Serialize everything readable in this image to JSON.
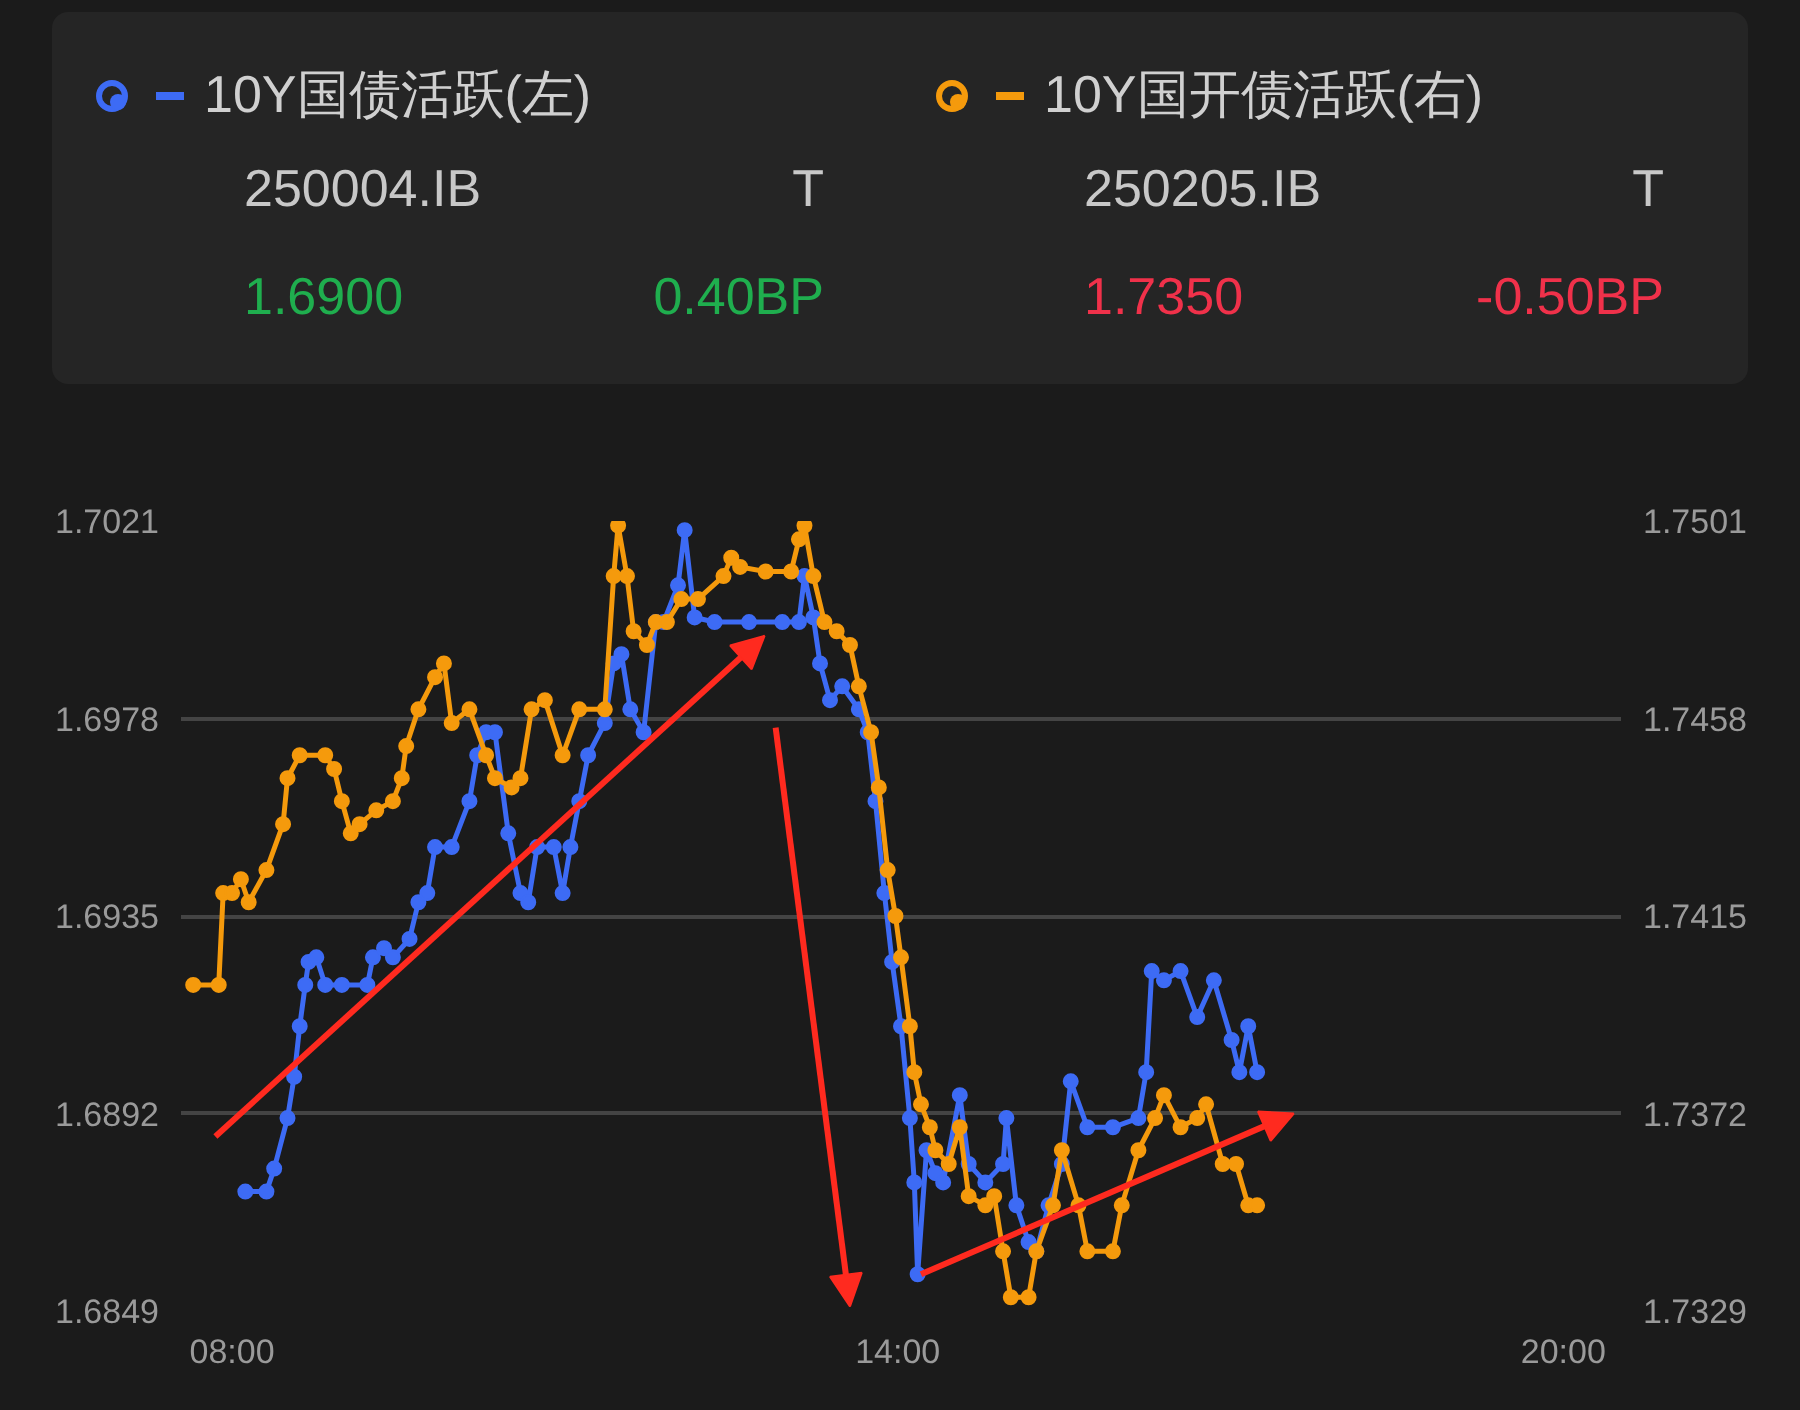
{
  "chart_data": {
    "type": "line",
    "marker": "circle",
    "line_style": "solid",
    "grid": "y",
    "legend": "top",
    "xlim": [
      7.54,
      20.52
    ],
    "xticks": [
      {
        "value": 8,
        "label": "08:00"
      },
      {
        "value": 14,
        "label": "14:00"
      },
      {
        "value": 20,
        "label": "20:00"
      }
    ],
    "ylim": [
      1.6849,
      1.7021
    ],
    "yticks": [
      1.6849,
      1.6892,
      1.6935,
      1.6978,
      1.7021
    ],
    "y2lim": [
      1.7329,
      1.7501
    ],
    "y2ticks": [
      1.7329,
      1.7372,
      1.7415,
      1.7458,
      1.7501
    ],
    "annotations": [
      "250004.IB",
      "T",
      "1.6900",
      "0.40BP",
      "250205.IB",
      "T",
      "1.7350",
      "-0.50BP"
    ],
    "series": [
      {
        "name": "10Y国债活跃(左)",
        "color": "#3d6bf5",
        "x": [
          8.12,
          8.31,
          8.38,
          8.5,
          8.56,
          8.61,
          8.66,
          8.69,
          8.76,
          8.84,
          8.99,
          9.22,
          9.27,
          9.37,
          9.45,
          9.6,
          9.68,
          9.76,
          9.83,
          9.98,
          10.14,
          10.21,
          10.29,
          10.37,
          10.49,
          10.6,
          10.67,
          10.75,
          10.9,
          10.98,
          11.05,
          11.13,
          11.21,
          11.36,
          11.44,
          11.51,
          11.59,
          11.71,
          11.82,
          11.89,
          12.02,
          12.08,
          12.17,
          12.35,
          12.66,
          12.96,
          13.11,
          13.16,
          13.24,
          13.3,
          13.39,
          13.5,
          13.65,
          13.73,
          13.8,
          13.88,
          13.95,
          14.03,
          14.11,
          14.15,
          14.18,
          14.26,
          14.34,
          14.41,
          14.56,
          14.64,
          14.79,
          14.95,
          14.98,
          15.07,
          15.18,
          15.25,
          15.36,
          15.48,
          15.56,
          15.71,
          15.94,
          16.17,
          16.24,
          16.29,
          16.4,
          16.55,
          16.7,
          16.85,
          17.01,
          17.08,
          17.16,
          17.24
        ],
        "values": [
          1.6875,
          1.6875,
          1.688,
          1.6891,
          1.69,
          1.6911,
          1.692,
          1.6925,
          1.6926,
          1.692,
          1.692,
          1.692,
          1.6926,
          1.6928,
          1.6926,
          1.693,
          1.6938,
          1.694,
          1.695,
          1.695,
          1.696,
          1.697,
          1.6975,
          1.6975,
          1.6953,
          1.694,
          1.6938,
          1.695,
          1.695,
          1.694,
          1.695,
          1.696,
          1.697,
          1.6977,
          1.699,
          1.6992,
          1.698,
          1.6975,
          1.6999,
          1.6999,
          1.7007,
          1.7019,
          1.7,
          1.6999,
          1.6999,
          1.6999,
          1.6999,
          1.7009,
          1.7,
          1.699,
          1.6982,
          1.6985,
          1.698,
          1.6975,
          1.696,
          1.694,
          1.6925,
          1.6911,
          1.6891,
          1.6877,
          1.6857,
          1.6884,
          1.6879,
          1.6877,
          1.6896,
          1.6881,
          1.6877,
          1.6881,
          1.6891,
          1.6872,
          1.6864,
          1.6862,
          1.6872,
          1.6881,
          1.6899,
          1.6889,
          1.6889,
          1.6891,
          1.6901,
          1.6923,
          1.6921,
          1.6923,
          1.6913,
          1.6921,
          1.6908,
          1.6901,
          1.6911,
          1.6901
        ]
      },
      {
        "name": "10Y国开债活跃(右)",
        "color": "#f59a0c",
        "axis": "y2",
        "x": [
          7.65,
          7.88,
          7.92,
          8.0,
          8.08,
          8.15,
          8.31,
          8.46,
          8.5,
          8.61,
          8.84,
          8.92,
          8.99,
          9.07,
          9.15,
          9.3,
          9.45,
          9.53,
          9.57,
          9.68,
          9.83,
          9.91,
          9.98,
          10.14,
          10.29,
          10.37,
          10.52,
          10.6,
          10.7,
          10.82,
          10.98,
          11.13,
          11.36,
          11.44,
          11.48,
          11.56,
          11.62,
          11.74,
          11.82,
          11.92,
          12.05,
          12.2,
          12.43,
          12.5,
          12.58,
          12.81,
          13.04,
          13.11,
          13.16,
          13.24,
          13.34,
          13.45,
          13.57,
          13.65,
          13.76,
          13.83,
          13.91,
          13.98,
          14.03,
          14.11,
          14.15,
          14.21,
          14.29,
          14.34,
          14.46,
          14.56,
          14.64,
          14.79,
          14.87,
          14.95,
          15.02,
          15.18,
          15.25,
          15.4,
          15.48,
          15.63,
          15.71,
          15.94,
          16.02,
          16.17,
          16.32,
          16.4,
          16.55,
          16.7,
          16.78,
          16.93,
          17.05,
          17.16,
          17.24
        ],
        "values": [
          1.74,
          1.74,
          1.742,
          1.742,
          1.7423,
          1.7418,
          1.7425,
          1.7435,
          1.7445,
          1.745,
          1.745,
          1.7447,
          1.744,
          1.7433,
          1.7435,
          1.7438,
          1.744,
          1.7445,
          1.7452,
          1.746,
          1.7467,
          1.747,
          1.7457,
          1.746,
          1.745,
          1.7445,
          1.7443,
          1.7445,
          1.746,
          1.7462,
          1.745,
          1.746,
          1.746,
          1.7489,
          1.75,
          1.7489,
          1.7477,
          1.7474,
          1.7479,
          1.7479,
          1.7484,
          1.7484,
          1.7489,
          1.7493,
          1.7491,
          1.749,
          1.749,
          1.7497,
          1.75,
          1.7489,
          1.7479,
          1.7477,
          1.7474,
          1.7465,
          1.7455,
          1.7443,
          1.7425,
          1.7415,
          1.7406,
          1.7391,
          1.7381,
          1.7374,
          1.7369,
          1.7364,
          1.7361,
          1.7369,
          1.7354,
          1.7352,
          1.7354,
          1.7342,
          1.7332,
          1.7332,
          1.7342,
          1.7352,
          1.7364,
          1.7352,
          1.7342,
          1.7342,
          1.7352,
          1.7364,
          1.7371,
          1.7376,
          1.7369,
          1.7371,
          1.7374,
          1.7361,
          1.7361,
          1.7352,
          1.7352
        ]
      }
    ]
  }
}
